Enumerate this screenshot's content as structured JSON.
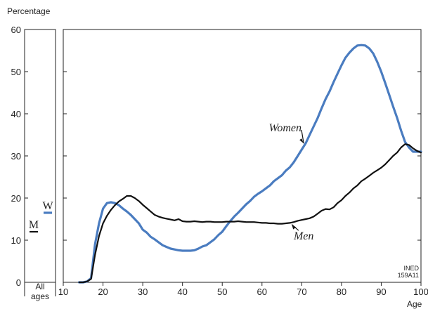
{
  "chart_data": {
    "type": "line",
    "ylabel": "Percentage",
    "xlabel": "Age",
    "ylim": [
      0,
      60
    ],
    "xlim": [
      10,
      100
    ],
    "yticks": [
      "0",
      "10",
      "20",
      "30",
      "40",
      "50",
      "60"
    ],
    "xticks": [
      "10",
      "20",
      "30",
      "40",
      "50",
      "60",
      "70",
      "80",
      "90",
      "100"
    ],
    "all_ages_label": [
      "All",
      "ages"
    ],
    "source_label": [
      "INED",
      "159A11"
    ],
    "colors": {
      "women": "#4a7cc0",
      "men": "#111111"
    },
    "series": [
      {
        "name": "Women",
        "x": [
          14,
          15,
          16,
          17,
          18,
          19,
          20,
          21,
          22,
          23,
          24,
          25,
          26,
          27,
          28,
          29,
          30,
          31,
          32,
          33,
          34,
          35,
          36,
          37,
          38,
          39,
          40,
          41,
          42,
          43,
          44,
          45,
          46,
          47,
          48,
          49,
          50,
          51,
          52,
          53,
          54,
          55,
          56,
          57,
          58,
          59,
          60,
          61,
          62,
          63,
          64,
          65,
          66,
          67,
          68,
          69,
          70,
          71,
          72,
          73,
          74,
          75,
          76,
          77,
          78,
          79,
          80,
          81,
          82,
          83,
          84,
          85,
          86,
          87,
          88,
          89,
          90,
          91,
          92,
          93,
          94,
          95,
          96,
          97,
          98,
          99,
          100
        ],
        "values": [
          0,
          0,
          0.2,
          1,
          9,
          14,
          17.5,
          18.8,
          19,
          18.8,
          18.3,
          17.5,
          16.8,
          16,
          15,
          14,
          12.5,
          11.8,
          10.8,
          10.2,
          9.5,
          8.8,
          8.4,
          8,
          7.8,
          7.6,
          7.5,
          7.5,
          7.5,
          7.6,
          8,
          8.5,
          8.8,
          9.5,
          10.2,
          11.2,
          12,
          13.3,
          14.5,
          15.6,
          16.5,
          17.5,
          18.5,
          19.3,
          20.3,
          21,
          21.6,
          22.3,
          23,
          24,
          24.7,
          25.4,
          26.5,
          27.3,
          28.5,
          30,
          31.5,
          33,
          35,
          37,
          39,
          41.3,
          43.5,
          45.3,
          47.5,
          49.5,
          51.5,
          53.3,
          54.5,
          55.5,
          56.2,
          56.3,
          56.2,
          55.5,
          54.3,
          52.3,
          50,
          47.3,
          44.5,
          41.7,
          39,
          36,
          33.3,
          32,
          31,
          31,
          31
        ]
      },
      {
        "name": "Men",
        "x": [
          14,
          15,
          16,
          17,
          18,
          19,
          20,
          21,
          22,
          23,
          24,
          25,
          26,
          27,
          28,
          29,
          30,
          31,
          32,
          33,
          34,
          35,
          36,
          37,
          38,
          39,
          40,
          41,
          42,
          43,
          44,
          45,
          46,
          47,
          48,
          49,
          50,
          51,
          52,
          53,
          54,
          55,
          56,
          57,
          58,
          59,
          60,
          61,
          62,
          63,
          64,
          65,
          66,
          67,
          68,
          69,
          70,
          71,
          72,
          73,
          74,
          75,
          76,
          77,
          78,
          79,
          80,
          81,
          82,
          83,
          84,
          85,
          86,
          87,
          88,
          89,
          90,
          91,
          92,
          93,
          94,
          95,
          96,
          97,
          98,
          99,
          100
        ],
        "values": [
          0,
          0,
          0.2,
          0.8,
          6.5,
          11,
          14,
          15.8,
          17.2,
          18.3,
          19.2,
          19.8,
          20.5,
          20.5,
          20,
          19.3,
          18.4,
          17.6,
          16.8,
          16,
          15.6,
          15.3,
          15.1,
          14.9,
          14.7,
          15,
          14.5,
          14.4,
          14.4,
          14.5,
          14.4,
          14.3,
          14.4,
          14.4,
          14.3,
          14.3,
          14.3,
          14.4,
          14.4,
          14.4,
          14.5,
          14.4,
          14.3,
          14.3,
          14.3,
          14.2,
          14.1,
          14.1,
          14,
          14,
          13.9,
          13.9,
          14,
          14.1,
          14.3,
          14.6,
          14.8,
          15,
          15.2,
          15.6,
          16.3,
          17,
          17.4,
          17.3,
          17.8,
          18.8,
          19.5,
          20.5,
          21.3,
          22.3,
          23,
          24,
          24.6,
          25.3,
          26,
          26.6,
          27.2,
          28,
          29,
          30,
          30.8,
          32,
          32.8,
          32.6,
          31.8,
          31.2,
          30.8
        ]
      }
    ],
    "annotations": [
      {
        "text": "Women",
        "series": "Women"
      },
      {
        "text": "Men",
        "series": "Men"
      }
    ],
    "all_ages": [
      {
        "label": "W",
        "series": "Women",
        "value": 16.5
      },
      {
        "label": "M",
        "series": "Men",
        "value": 12
      }
    ]
  }
}
